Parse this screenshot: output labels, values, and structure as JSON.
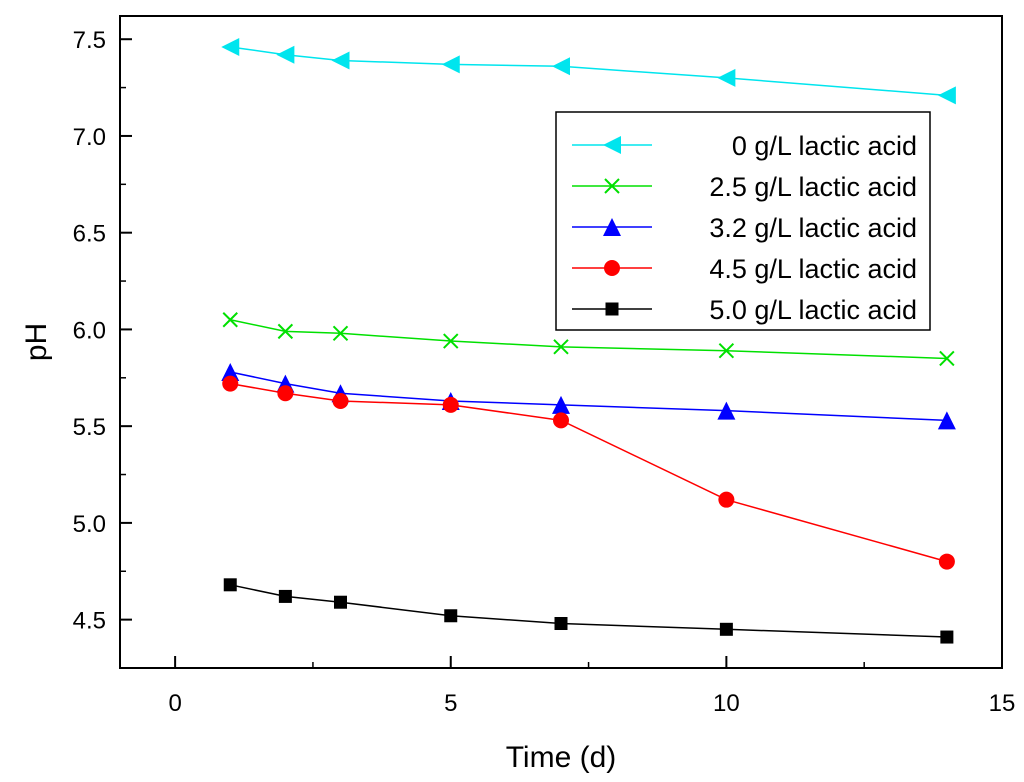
{
  "chart_data": {
    "type": "line",
    "title": "",
    "xlabel": "Time (d)",
    "ylabel": "pH",
    "xlim": [
      -1,
      15
    ],
    "ylim": [
      4.25,
      7.62
    ],
    "x_ticks": [
      "0",
      "5",
      "10",
      "15"
    ],
    "y_ticks": [
      "4.5",
      "5.0",
      "5.5",
      "6.0",
      "6.5",
      "7.0",
      "7.5"
    ],
    "legend_position": "top-right",
    "x": [
      1,
      2,
      3,
      5,
      7,
      10,
      14
    ],
    "series": [
      {
        "name": "0 g/L lactic acid",
        "values": [
          7.46,
          7.42,
          7.39,
          7.37,
          7.36,
          7.3,
          7.21
        ],
        "color": "#00E5EE",
        "marker": "triangle-left"
      },
      {
        "name": "2.5 g/L lactic acid",
        "values": [
          6.05,
          5.99,
          5.98,
          5.94,
          5.91,
          5.89,
          5.85
        ],
        "color": "#00E000",
        "marker": "x"
      },
      {
        "name": "3.2 g/L lactic acid",
        "values": [
          5.78,
          5.72,
          5.67,
          5.63,
          5.61,
          5.58,
          5.53
        ],
        "color": "#0000FF",
        "marker": "triangle-up"
      },
      {
        "name": "4.5 g/L lactic acid",
        "values": [
          5.72,
          5.67,
          5.63,
          5.61,
          5.53,
          5.12,
          4.8
        ],
        "color": "#FF0000",
        "marker": "circle"
      },
      {
        "name": "5.0 g/L lactic acid",
        "values": [
          4.68,
          4.62,
          4.59,
          4.52,
          4.48,
          4.45,
          4.41
        ],
        "color": "#000000",
        "marker": "square"
      }
    ]
  }
}
